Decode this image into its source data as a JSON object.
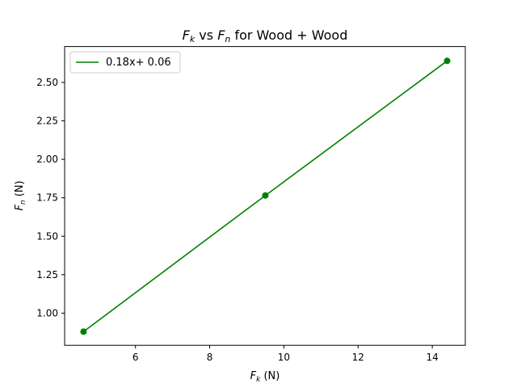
{
  "chart_data": {
    "type": "line",
    "title": {
      "part1_main": "F",
      "part1_sub": "k",
      "part2": " vs ",
      "part3_main": "F",
      "part3_sub": "n",
      "part4": " for Wood + Wood"
    },
    "xlabel": {
      "main": "F",
      "sub": "k",
      "rest": " (N)"
    },
    "ylabel": {
      "main": "F",
      "sub": "n",
      "rest": " (N)"
    },
    "xlim": [
      4.09,
      14.89
    ],
    "ylim": [
      0.791,
      2.733
    ],
    "xticks": [
      6,
      8,
      10,
      12,
      14
    ],
    "xtick_labels": [
      "6",
      "8",
      "10",
      "12",
      "14"
    ],
    "yticks": [
      1.0,
      1.25,
      1.5,
      1.75,
      2.0,
      2.25,
      2.5
    ],
    "ytick_labels": [
      "1.00",
      "1.25",
      "1.50",
      "1.75",
      "2.00",
      "2.25",
      "2.50"
    ],
    "grid": false,
    "legend_position": "top-left",
    "series": [
      {
        "name": "0.18x+ 0.06",
        "color": "#008000",
        "marker": "circle",
        "x": [
          4.6,
          9.5,
          14.4
        ],
        "y": [
          0.88,
          1.765,
          2.64
        ]
      }
    ]
  }
}
